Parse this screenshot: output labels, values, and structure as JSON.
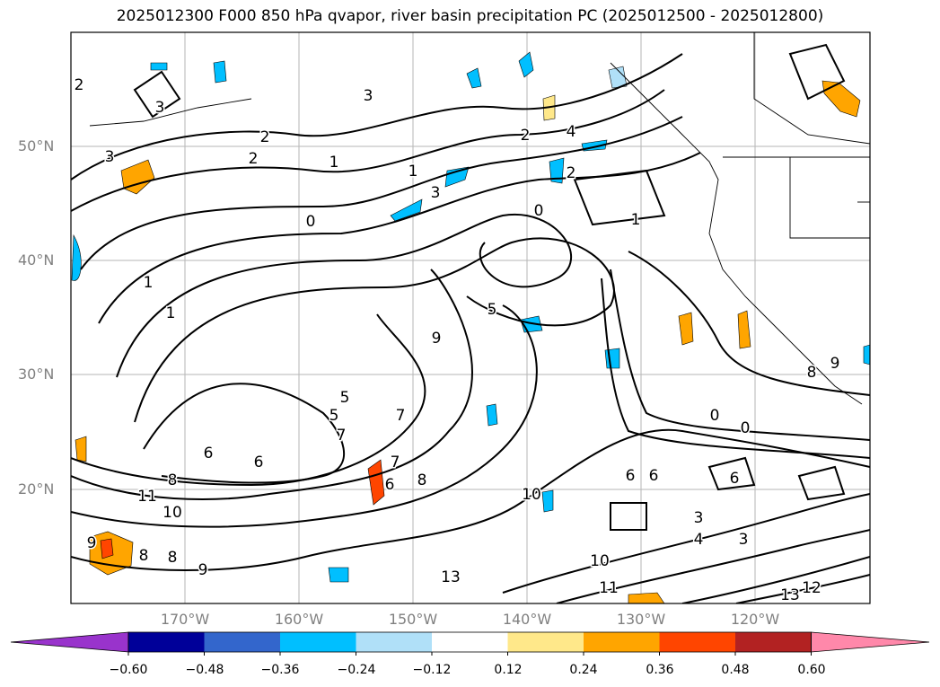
{
  "title": "2025012300 F000 850 hPa qvapor, river basin precipitation PC (2025012500 - 2025012800)",
  "lat_labels": [
    "50°N",
    "40°N",
    "30°N",
    "20°N"
  ],
  "lon_labels": [
    "170°W",
    "160°W",
    "150°W",
    "140°W",
    "130°W",
    "120°W"
  ],
  "colorbar": {
    "ticks": [
      "−0.60",
      "−0.48",
      "−0.36",
      "−0.24",
      "−0.12",
      "0.12",
      "0.24",
      "0.36",
      "0.48",
      "0.60"
    ],
    "colors": [
      "#9933cc",
      "#000099",
      "#3366cc",
      "#00bfff",
      "#b0e0f8",
      "#ffffff",
      "#ffe88a",
      "#ffa500",
      "#ff4500",
      "#b22222",
      "#ff88aa"
    ]
  },
  "contour_labels": [
    "2",
    "3",
    "3",
    "3",
    "2",
    "2",
    "1",
    "2",
    "4",
    "1",
    "1",
    "3",
    "2",
    "0",
    "0",
    "1",
    "1",
    "0",
    "5",
    "9",
    "5",
    "5",
    "7",
    "6",
    "7",
    "7",
    "6",
    "8",
    "8",
    "6",
    "6",
    "6",
    "6",
    "10",
    "11",
    "10",
    "9",
    "8",
    "8",
    "9",
    "3",
    "4",
    "3",
    "10",
    "11",
    "12",
    "13",
    "13",
    "0",
    "0",
    "8",
    "9"
  ],
  "map": {
    "projection": "lat-lon",
    "lon_range": [
      -178,
      -108
    ],
    "lat_range": [
      10,
      60
    ],
    "grid": true,
    "contour_field": "850 hPa qvapor",
    "shading_field": "river basin precipitation PC"
  }
}
